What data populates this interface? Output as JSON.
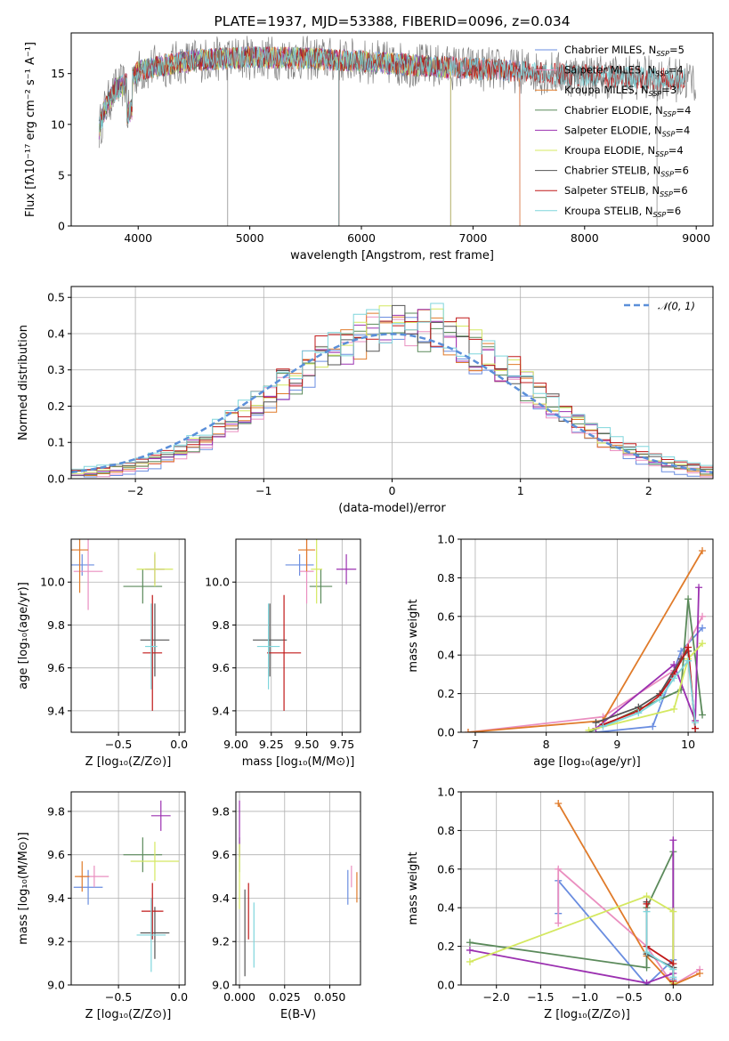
{
  "colors": {
    "chabrier_miles": "#6a8de0",
    "salpeter_miles": "#ea8fc0",
    "kroupa_miles": "#e07b2a",
    "chabrier_elodie": "#5b8a5b",
    "salpeter_elodie": "#9b30b0",
    "kroupa_elodie": "#d4e860",
    "chabrier_stelib": "#555555",
    "salpeter_stelib": "#c01818",
    "kroupa_stelib": "#7fd6dc",
    "grid": "#b0b0b0",
    "normal_fit": "#5b8fd9"
  },
  "chart_data": [
    {
      "id": "spectrum",
      "type": "line",
      "title": "PLATE=1937, MJD=53388, FIBERID=0096, z=0.034",
      "xlabel": "wavelength [Angstrom, rest frame]",
      "ylabel": "Flux [fλ10⁻¹⁷ erg cm⁻² s⁻¹ A⁻¹]",
      "xlim": [
        3400,
        9150
      ],
      "ylim": [
        0,
        19
      ],
      "xticks": [
        "4000",
        "5000",
        "6000",
        "7000",
        "8000",
        "9000"
      ],
      "yticks": [
        "0",
        "5",
        "10",
        "15"
      ],
      "legend": "upper right",
      "legend_entries": [
        "Chabrier MILES, N_SSP=5",
        "Salpeter MILES, N_SSP=4",
        "Kroupa MILES, N_SSP=3",
        "Chabrier ELODIE, N_SSP=4",
        "Salpeter ELODIE, N_SSP=4",
        "Kroupa ELODIE, N_SSP=4",
        "Chabrier STELIB, N_SSP=6",
        "Salpeter STELIB, N_SSP=6",
        "Kroupa STELIB, N_SSP=6"
      ],
      "continuum": {
        "x": [
          3650,
          3700,
          3800,
          3900,
          4000,
          4200,
          4500,
          5000,
          5500,
          6000,
          6500,
          7000,
          7500,
          8000,
          8500,
          9000
        ],
        "y": [
          9.5,
          11.5,
          13.5,
          14.0,
          15.2,
          15.8,
          16.3,
          16.6,
          16.5,
          16.2,
          15.8,
          15.5,
          15.2,
          14.8,
          14.6,
          14.3
        ]
      },
      "series": [
        {
          "name": "Chabrier MILES",
          "x_range": [
            3650,
            7420
          ]
        },
        {
          "name": "Salpeter MILES",
          "x_range": [
            3650,
            7420
          ]
        },
        {
          "name": "Kroupa MILES",
          "x_range": [
            3650,
            7420
          ]
        },
        {
          "name": "Chabrier ELODIE",
          "x_range": [
            3650,
            6800
          ]
        },
        {
          "name": "Salpeter ELODIE",
          "x_range": [
            3650,
            6800
          ]
        },
        {
          "name": "Kroupa ELODIE",
          "x_range": [
            3650,
            6800
          ]
        },
        {
          "name": "Chabrier STELIB",
          "x_range": [
            3650,
            8900
          ]
        },
        {
          "name": "Salpeter STELIB",
          "x_range": [
            3650,
            8900
          ]
        },
        {
          "name": "Kroupa STELIB",
          "x_range": [
            3650,
            8900
          ]
        }
      ]
    },
    {
      "id": "residuals",
      "type": "histogram",
      "xlabel": "(data-model)/error",
      "ylabel": "Normed distribution",
      "xlim": [
        -2.5,
        2.5
      ],
      "ylim": [
        0,
        0.53
      ],
      "xticks": [
        "−2",
        "−1",
        "0",
        "1",
        "2"
      ],
      "yticks": [
        "0.0",
        "0.1",
        "0.2",
        "0.3",
        "0.4",
        "0.5"
      ],
      "grid": true,
      "legend": "upper right",
      "legend_entries": [
        "𝒩(0, 1)"
      ],
      "bin_width": 0.1
    },
    {
      "id": "age_vs_Z",
      "type": "errorbar",
      "xlabel": "Z [log₁₀(Z/Z⊙)]",
      "ylabel": "age  [log₁₀(age/yr)]",
      "xlim": [
        -0.89,
        0.05
      ],
      "ylim": [
        9.3,
        10.2
      ],
      "xticks": [
        "−0.5",
        "0.0"
      ],
      "yticks": [
        "9.4",
        "9.6",
        "9.8",
        "10.0"
      ],
      "grid": true,
      "points": [
        {
          "x": -0.8,
          "xerr": 0.1,
          "y": 10.08,
          "yerr": 0.05
        },
        {
          "x": -0.75,
          "xerr": 0.12,
          "y": 10.05,
          "yerr": 0.18
        },
        {
          "x": -0.82,
          "xerr": 0.07,
          "y": 10.15,
          "yerr": 0.2
        },
        {
          "x": -0.3,
          "xerr": 0.16,
          "y": 9.98,
          "yerr": 0.08
        },
        {
          "x": -0.2,
          "xerr": 0.08,
          "y": 10.06,
          "yerr": 0.07
        },
        {
          "x": -0.2,
          "xerr": 0.15,
          "y": 10.06,
          "yerr": 0.08
        },
        {
          "x": -0.2,
          "xerr": 0.12,
          "y": 9.73,
          "yerr": 0.17
        },
        {
          "x": -0.22,
          "xerr": 0.08,
          "y": 9.67,
          "yerr": 0.27
        },
        {
          "x": -0.23,
          "xerr": 0.05,
          "y": 9.7,
          "yerr": 0.2
        }
      ]
    },
    {
      "id": "age_vs_mass",
      "type": "errorbar",
      "xlabel": "mass [log₁₀(M/M⊙)]",
      "ylabel": "",
      "xlim": [
        9.0,
        9.88
      ],
      "ylim": [
        9.3,
        10.2
      ],
      "xticks": [
        "9.00",
        "9.25",
        "9.50",
        "9.75"
      ],
      "yticks": [
        "9.4",
        "9.6",
        "9.8",
        "10.0"
      ],
      "grid": true,
      "points": [
        {
          "x": 9.45,
          "xerr": 0.1,
          "y": 10.08,
          "yerr": 0.05
        },
        {
          "x": 9.5,
          "xerr": 0.05,
          "y": 10.05,
          "yerr": 0.15
        },
        {
          "x": 9.5,
          "xerr": 0.06,
          "y": 10.15,
          "yerr": 0.1
        },
        {
          "x": 9.6,
          "xerr": 0.08,
          "y": 9.98,
          "yerr": 0.08
        },
        {
          "x": 9.78,
          "xerr": 0.07,
          "y": 10.06,
          "yerr": 0.07
        },
        {
          "x": 9.57,
          "xerr": 0.04,
          "y": 10.06,
          "yerr": 0.16
        },
        {
          "x": 9.24,
          "xerr": 0.12,
          "y": 9.73,
          "yerr": 0.17
        },
        {
          "x": 9.34,
          "xerr": 0.12,
          "y": 9.67,
          "yerr": 0.27
        },
        {
          "x": 9.23,
          "xerr": 0.08,
          "y": 9.7,
          "yerr": 0.2
        }
      ]
    },
    {
      "id": "massweight_vs_age",
      "type": "line",
      "xlabel": "age  [log₁₀(age/yr)]",
      "ylabel": "mass weight",
      "xlim": [
        6.8,
        10.35
      ],
      "ylim": [
        0,
        1
      ],
      "xticks": [
        "7",
        "8",
        "9",
        "10"
      ],
      "yticks": [
        "0.0",
        "0.2",
        "0.4",
        "0.6",
        "0.8",
        "1.0"
      ],
      "grid": true,
      "series": [
        {
          "x": [
            8.7,
            9.5,
            9.9,
            10.2
          ],
          "y": [
            0.0,
            0.03,
            0.42,
            0.54
          ]
        },
        {
          "x": [
            6.9,
            8.8,
            9.8,
            10.2
          ],
          "y": [
            0.0,
            0.08,
            0.32,
            0.6
          ]
        },
        {
          "x": [
            6.9,
            8.8,
            10.2
          ],
          "y": [
            0.0,
            0.06,
            0.94
          ]
        },
        {
          "x": [
            8.6,
            9.9,
            10.0,
            10.2
          ],
          "y": [
            0.0,
            0.22,
            0.69,
            0.09
          ]
        },
        {
          "x": [
            8.7,
            9.8,
            10.1,
            10.15
          ],
          "y": [
            0.02,
            0.35,
            0.06,
            0.75
          ]
        },
        {
          "x": [
            8.6,
            9.8,
            10.0,
            10.2
          ],
          "y": [
            0.01,
            0.12,
            0.38,
            0.46
          ]
        },
        {
          "x": [
            8.7,
            9.3,
            9.6,
            9.9,
            10.0,
            10.1
          ],
          "y": [
            0.05,
            0.13,
            0.2,
            0.38,
            0.42,
            0.02
          ]
        },
        {
          "x": [
            8.8,
            9.3,
            9.6,
            9.8,
            10.0,
            10.1
          ],
          "y": [
            0.04,
            0.11,
            0.19,
            0.3,
            0.44,
            0.02
          ]
        },
        {
          "x": [
            8.8,
            9.3,
            9.6,
            9.8,
            10.0,
            10.1
          ],
          "y": [
            0.03,
            0.1,
            0.17,
            0.28,
            0.37,
            0.05
          ]
        }
      ]
    },
    {
      "id": "mass_vs_Z",
      "type": "errorbar",
      "xlabel": "Z [log₁₀(Z/Z⊙)]",
      "ylabel": "mass [log₁₀(M/M⊙)]",
      "xlim": [
        -0.89,
        0.05
      ],
      "ylim": [
        9.0,
        9.89
      ],
      "xticks": [
        "−0.5",
        "0.0"
      ],
      "yticks": [
        "9.0",
        "9.2",
        "9.4",
        "9.6",
        "9.8"
      ],
      "grid": true,
      "points": [
        {
          "x": -0.75,
          "xerr": 0.12,
          "y": 9.45,
          "yerr": 0.08
        },
        {
          "x": -0.7,
          "xerr": 0.12,
          "y": 9.5,
          "yerr": 0.05
        },
        {
          "x": -0.8,
          "xerr": 0.06,
          "y": 9.5,
          "yerr": 0.07
        },
        {
          "x": -0.3,
          "xerr": 0.16,
          "y": 9.6,
          "yerr": 0.08
        },
        {
          "x": -0.15,
          "xerr": 0.08,
          "y": 9.78,
          "yerr": 0.07
        },
        {
          "x": -0.2,
          "xerr": 0.2,
          "y": 9.57,
          "yerr": 0.09
        },
        {
          "x": -0.2,
          "xerr": 0.12,
          "y": 9.24,
          "yerr": 0.12
        },
        {
          "x": -0.22,
          "xerr": 0.09,
          "y": 9.34,
          "yerr": 0.13
        },
        {
          "x": -0.23,
          "xerr": 0.12,
          "y": 9.23,
          "yerr": 0.17
        }
      ]
    },
    {
      "id": "mass_vs_ebv",
      "type": "errorbar",
      "xlabel": "E(B-V)",
      "ylabel": "",
      "xlim": [
        -0.002,
        0.067
      ],
      "ylim": [
        9.0,
        9.89
      ],
      "xticks": [
        "0.000",
        "0.025",
        "0.050"
      ],
      "yticks": [
        "9.0",
        "9.2",
        "9.4",
        "9.6",
        "9.8"
      ],
      "grid": true,
      "points": [
        {
          "x": 0.06,
          "xerr": 0.0,
          "y": 9.45,
          "yerr": 0.08
        },
        {
          "x": 0.062,
          "xerr": 0.0,
          "y": 9.5,
          "yerr": 0.05
        },
        {
          "x": 0.065,
          "xerr": 0.0,
          "y": 9.45,
          "yerr": 0.07
        },
        {
          "x": 0.0,
          "xerr": 0.0,
          "y": 9.6,
          "yerr": 0.08
        },
        {
          "x": 0.0,
          "xerr": 0.0,
          "y": 9.72,
          "yerr": 0.13
        },
        {
          "x": 0.0,
          "xerr": 0.0,
          "y": 9.5,
          "yerr": 0.15
        },
        {
          "x": 0.003,
          "xerr": 0.0,
          "y": 9.24,
          "yerr": 0.2
        },
        {
          "x": 0.005,
          "xerr": 0.0,
          "y": 9.34,
          "yerr": 0.13
        },
        {
          "x": 0.008,
          "xerr": 0.0,
          "y": 9.23,
          "yerr": 0.15
        }
      ]
    },
    {
      "id": "massweight_vs_Z",
      "type": "line",
      "xlabel": "Z [log₁₀(Z/Z⊙)]",
      "ylabel": "mass weight",
      "xlim": [
        -2.4,
        0.45
      ],
      "ylim": [
        0,
        1
      ],
      "xticks": [
        "−2.0",
        "−1.5",
        "−1.0",
        "−0.5",
        "0.0"
      ],
      "yticks": [
        "0.0",
        "0.2",
        "0.4",
        "0.6",
        "0.8",
        "1.0"
      ],
      "grid": true,
      "series": [
        {
          "x": [
            -1.3,
            -1.3,
            -0.3,
            0.0,
            0.0
          ],
          "y": [
            0.37,
            0.54,
            0.0,
            0.13,
            0.03
          ]
        },
        {
          "x": [
            -1.3,
            -1.3,
            -0.3,
            0.0,
            0.3
          ],
          "y": [
            0.32,
            0.6,
            0.2,
            0.0,
            0.08
          ]
        },
        {
          "x": [
            -1.3,
            -0.3,
            0.0,
            0.3
          ],
          "y": [
            0.94,
            0.15,
            0.0,
            0.06
          ]
        },
        {
          "x": [
            -2.3,
            -0.3,
            -0.3,
            0.0,
            0.0
          ],
          "y": [
            0.22,
            0.09,
            0.4,
            0.69,
            0.09
          ]
        },
        {
          "x": [
            -2.3,
            -0.3,
            0.0,
            0.0
          ],
          "y": [
            0.18,
            0.01,
            0.06,
            0.75
          ]
        },
        {
          "x": [
            -2.3,
            -0.3,
            0.0,
            0.0
          ],
          "y": [
            0.12,
            0.46,
            0.38,
            0.01
          ]
        },
        {
          "x": [
            -0.3,
            -0.3,
            0.0,
            0.0
          ],
          "y": [
            0.43,
            0.16,
            0.09,
            0.02
          ]
        },
        {
          "x": [
            -0.3,
            -0.3,
            0.0,
            0.0
          ],
          "y": [
            0.42,
            0.2,
            0.11,
            0.02
          ]
        },
        {
          "x": [
            -0.3,
            -0.3,
            0.0,
            0.0
          ],
          "y": [
            0.38,
            0.17,
            0.08,
            0.04
          ]
        }
      ]
    }
  ]
}
